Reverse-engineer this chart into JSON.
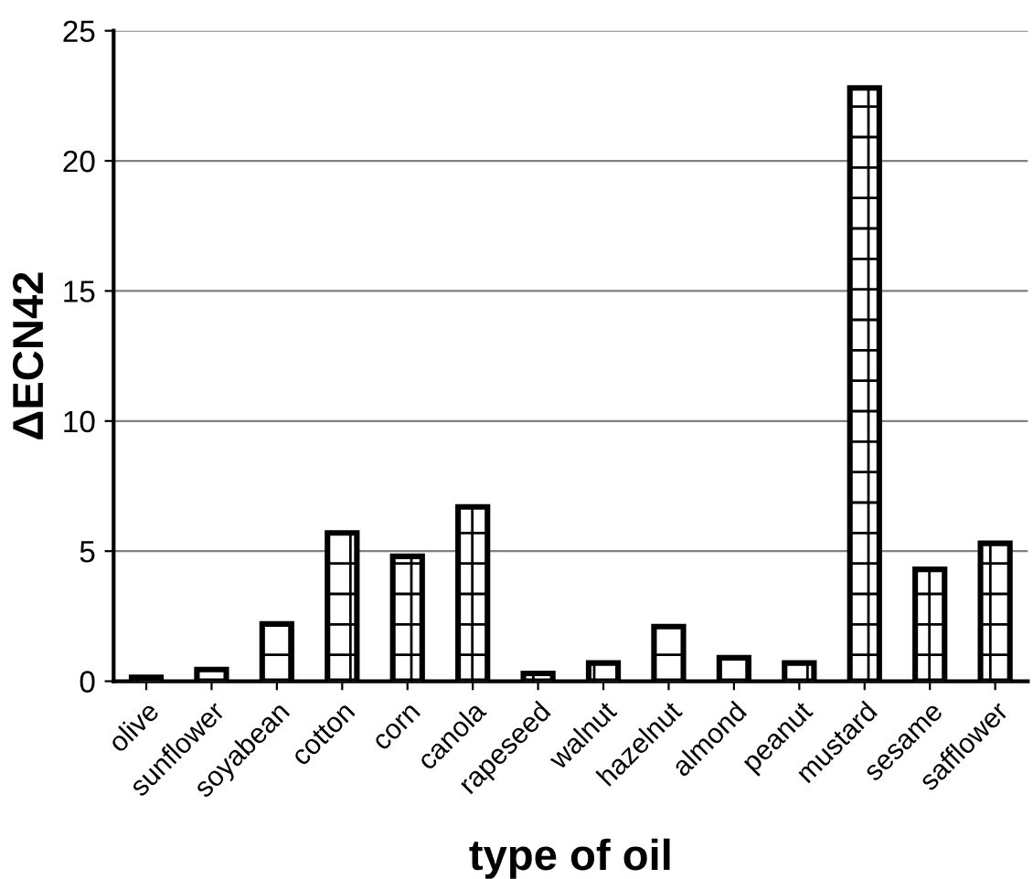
{
  "chart_data": {
    "type": "bar",
    "xlabel": "type of oil",
    "ylabel": "ΔECN42",
    "categories": [
      "olive",
      "sunflower",
      "soyabean",
      "cotton",
      "corn",
      "canola",
      "rapeseed",
      "walnut",
      "hazelnut",
      "almond",
      "peanut",
      "mustard",
      "sesame",
      "safflower"
    ],
    "values": [
      0.15,
      0.45,
      2.2,
      5.7,
      4.8,
      6.7,
      0.3,
      0.7,
      2.1,
      0.9,
      0.7,
      22.8,
      4.3,
      5.3
    ],
    "color": "#000000",
    "ylim": [
      0,
      25
    ],
    "yticks": [
      0,
      5,
      10,
      15,
      20,
      25
    ],
    "grid": "y",
    "legend": false
  }
}
